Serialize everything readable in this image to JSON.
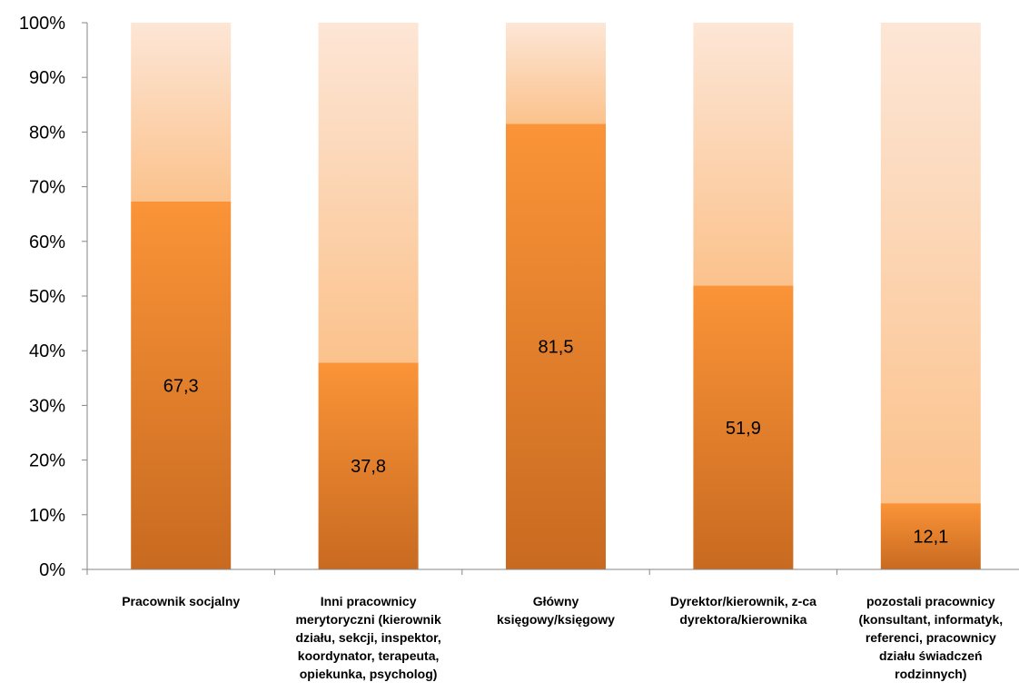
{
  "chart_data": {
    "type": "bar",
    "stacked": "100%",
    "categories": [
      "Pracownik socjalny",
      "Inni pracownicy merytoryczni (kierownik działu, sekcji, inspektor, koordynator, terapeuta, opiekunka, psycholog)",
      "Główny księgowy/księgowy",
      "Dyrektor/kierownik, z-ca dyrektora/kierownika",
      "pozostali pracownicy (konsultant, informatyk, referenci, pracownicy działu świadczeń rodzinnych)"
    ],
    "category_label_lines": [
      [
        "Pracownik socjalny"
      ],
      [
        "Inni pracownicy",
        "merytoryczni (kierownik",
        "działu, sekcji, inspektor,",
        "koordynator, terapeuta,",
        "opiekunka, psycholog)"
      ],
      [
        "Główny",
        "księgowy/księgowy"
      ],
      [
        "Dyrektor/kierownik, z-ca",
        "dyrektora/kierownika"
      ],
      [
        "pozostali pracownicy",
        "(konsultant, informatyk,",
        "referenci, pracownicy",
        "działu świadczeń",
        "rodzinnych)"
      ]
    ],
    "values": [
      67.3,
      37.8,
      81.5,
      51.9,
      12.1
    ],
    "data_labels": [
      "67,3",
      "37,8",
      "81,5",
      "51,9",
      "12,1"
    ],
    "ylim": [
      0,
      100
    ],
    "yticks": [
      "0%",
      "10%",
      "20%",
      "30%",
      "40%",
      "50%",
      "60%",
      "70%",
      "80%",
      "90%",
      "100%"
    ],
    "grid": false,
    "legend": "none",
    "colors": {
      "series_top": "#fb9438",
      "series_bottom": "#c86a20",
      "remainder_top": "#fde6d6",
      "remainder_bottom": "#fbc28c",
      "axis": "#868686"
    }
  }
}
